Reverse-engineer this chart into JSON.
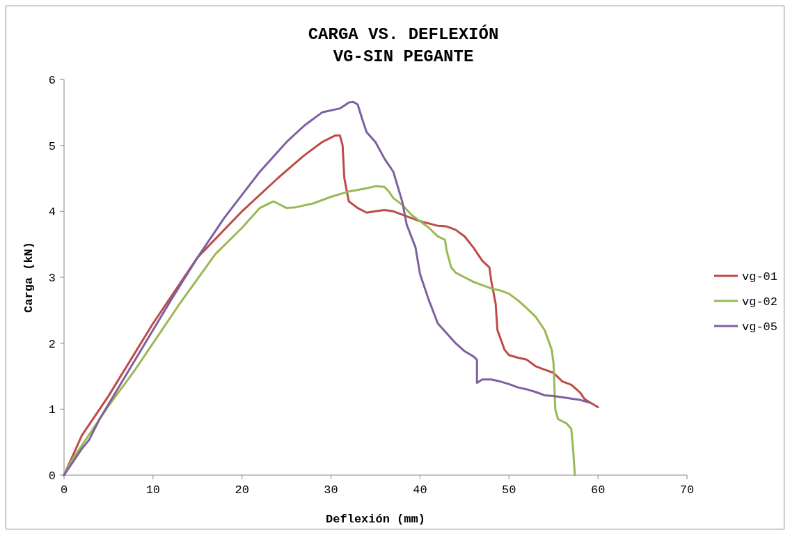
{
  "chart_data": {
    "type": "line",
    "title": "CARGA VS. DEFLEXIÓN",
    "subtitle": "VG-SIN PEGANTE",
    "xlabel": "Deflexión (mm)",
    "ylabel": "Carga (kN)",
    "xlim": [
      0,
      70
    ],
    "xticks": [
      0,
      10,
      20,
      30,
      40,
      50,
      60,
      70
    ],
    "ylim": [
      0,
      6
    ],
    "yticks": [
      0,
      1,
      2,
      3,
      4,
      5,
      6
    ],
    "grid": false,
    "legend": "right",
    "marker": "none",
    "line_style": "solid",
    "series": [
      {
        "name": "vg-01",
        "color": "#be4b48",
        "x": [
          0,
          2,
          5,
          10,
          15,
          20,
          24,
          27,
          29,
          30.5,
          31,
          31.3,
          31.5,
          32,
          33,
          34,
          35,
          36,
          37,
          38,
          40,
          42,
          43,
          44,
          45,
          46,
          47,
          47.8,
          48,
          48.5,
          48.7,
          49.5,
          50,
          51,
          52,
          53,
          54,
          55,
          56,
          57,
          58,
          58.5,
          60
        ],
        "values": [
          0,
          0.6,
          1.2,
          2.3,
          3.3,
          4.0,
          4.5,
          4.85,
          5.05,
          5.15,
          5.15,
          5.0,
          4.5,
          4.15,
          4.05,
          3.98,
          4.0,
          4.02,
          4.0,
          3.95,
          3.85,
          3.78,
          3.77,
          3.72,
          3.62,
          3.45,
          3.25,
          3.15,
          2.95,
          2.6,
          2.2,
          1.9,
          1.82,
          1.78,
          1.75,
          1.65,
          1.6,
          1.55,
          1.42,
          1.37,
          1.25,
          1.15,
          1.03
        ]
      },
      {
        "name": "vg-02",
        "color": "#98b954",
        "x": [
          0,
          1,
          3,
          5,
          8,
          10,
          13,
          17,
          20,
          22,
          23.5,
          24,
          25,
          26,
          28,
          30,
          32,
          34,
          35,
          36,
          36.5,
          37,
          38,
          39,
          40,
          41,
          42,
          42.8,
          43,
          43.5,
          44,
          45,
          46,
          47,
          48,
          49,
          50,
          51,
          52,
          53,
          54,
          54.8,
          55,
          55.2,
          55.5,
          56.5,
          57,
          57.2,
          57.4
        ],
        "values": [
          0,
          0.25,
          0.65,
          1.05,
          1.6,
          2.0,
          2.6,
          3.35,
          3.75,
          4.05,
          4.15,
          4.12,
          4.05,
          4.06,
          4.12,
          4.22,
          4.3,
          4.35,
          4.38,
          4.37,
          4.3,
          4.2,
          4.1,
          3.95,
          3.85,
          3.75,
          3.62,
          3.57,
          3.4,
          3.15,
          3.07,
          3.0,
          2.93,
          2.88,
          2.83,
          2.8,
          2.75,
          2.65,
          2.53,
          2.4,
          2.2,
          1.9,
          1.7,
          1.0,
          0.85,
          0.78,
          0.7,
          0.4,
          0
        ]
      },
      {
        "name": "vg-05",
        "color": "#7d60a0",
        "x": [
          0,
          1,
          2,
          2.8,
          4,
          6,
          8,
          10,
          12,
          15,
          18,
          20,
          22,
          25,
          27,
          29,
          31,
          32,
          32.5,
          33,
          33.5,
          34,
          35,
          36,
          37,
          38,
          38.5,
          39.5,
          40,
          41,
          42,
          43,
          44,
          45,
          46,
          46.4,
          46.4,
          47,
          48,
          49,
          50,
          51,
          52,
          53,
          54,
          55,
          56,
          57,
          58,
          59
        ],
        "values": [
          0,
          0.2,
          0.4,
          0.53,
          0.85,
          1.3,
          1.75,
          2.2,
          2.65,
          3.3,
          3.9,
          4.25,
          4.6,
          5.05,
          5.3,
          5.5,
          5.56,
          5.65,
          5.66,
          5.62,
          5.4,
          5.2,
          5.05,
          4.8,
          4.6,
          4.15,
          3.8,
          3.45,
          3.05,
          2.65,
          2.3,
          2.15,
          2.0,
          1.88,
          1.8,
          1.75,
          1.4,
          1.45,
          1.45,
          1.42,
          1.38,
          1.33,
          1.3,
          1.26,
          1.21,
          1.2,
          1.18,
          1.16,
          1.14,
          1.1
        ]
      }
    ]
  }
}
